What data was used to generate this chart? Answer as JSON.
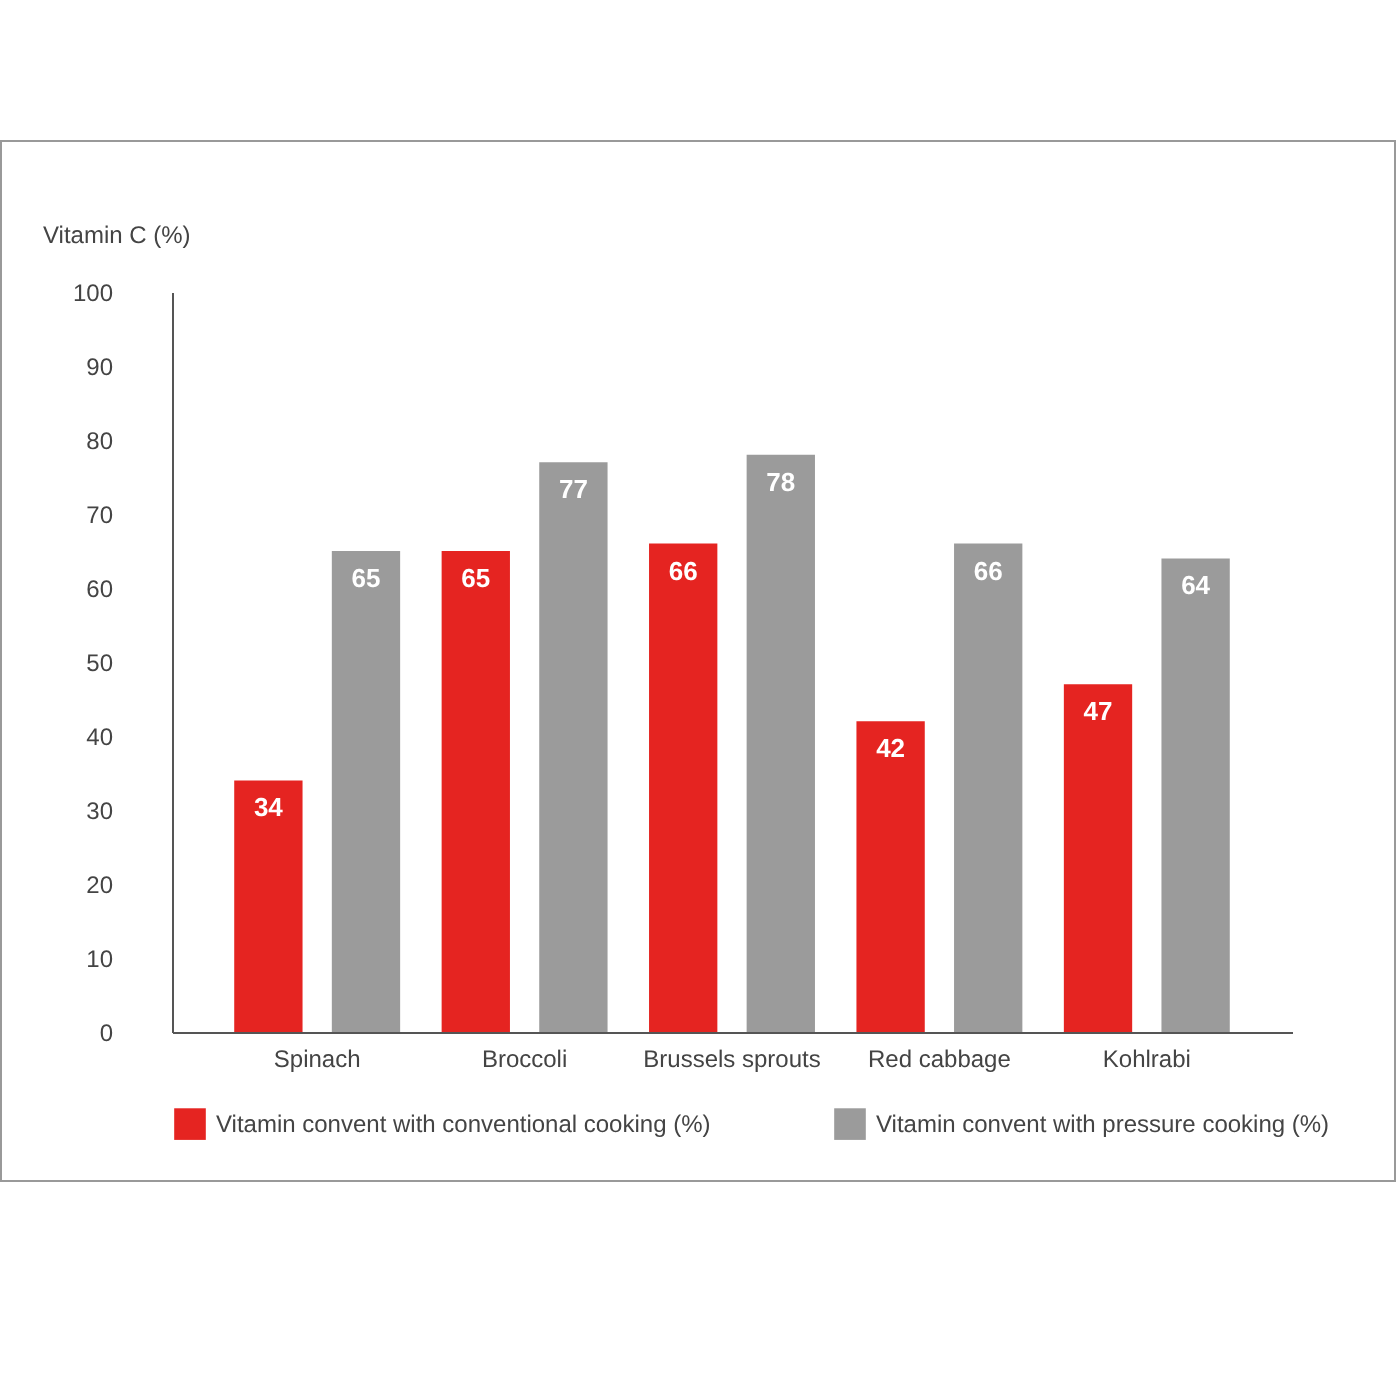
{
  "chart_data": {
    "type": "bar",
    "ylabel": "Vitamin C (%)",
    "categories": [
      "Spinach",
      "Broccoli",
      "Brussels sprouts",
      "Red cabbage",
      "Kohlrabi"
    ],
    "series": [
      {
        "name": "Vitamin convent with conventional cooking (%)",
        "color": "#e52421",
        "values": [
          34,
          65,
          66,
          42,
          47
        ]
      },
      {
        "name": "Vitamin convent with pressure cooking (%)",
        "color": "#9b9b9b",
        "values": [
          65,
          77,
          78,
          66,
          64
        ]
      }
    ],
    "ylim": [
      0,
      100
    ],
    "yticks": [
      0,
      10,
      20,
      30,
      40,
      50,
      60,
      70,
      80,
      90,
      100
    ],
    "grid": false,
    "legend": "bottom right",
    "data_labels": true
  }
}
